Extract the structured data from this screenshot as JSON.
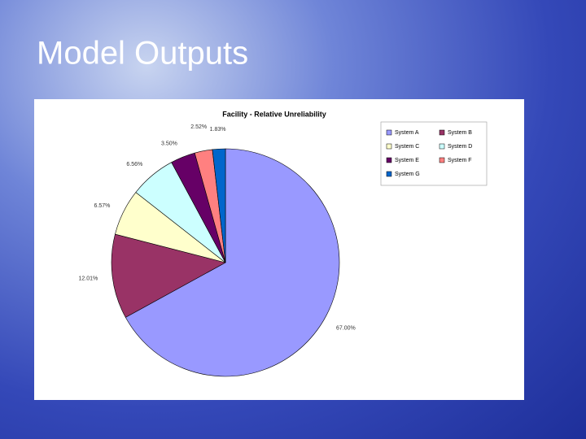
{
  "slide_title": "Model Outputs",
  "chart_data": {
    "type": "pie",
    "title": "Facility - Relative Unreliability",
    "categories": [
      "System A",
      "System B",
      "System C",
      "System D",
      "System E",
      "System F",
      "System G"
    ],
    "values": [
      67.0,
      12.01,
      6.57,
      6.56,
      3.5,
      2.52,
      1.83
    ],
    "value_labels": [
      "67.00%",
      "12.01%",
      "6.57%",
      "6.56%",
      "3.50%",
      "2.52%",
      "1.83%"
    ],
    "colors": [
      "#9999ff",
      "#993366",
      "#ffffcc",
      "#ccffff",
      "#660066",
      "#ff8080",
      "#0066cc"
    ],
    "legend": "right"
  }
}
